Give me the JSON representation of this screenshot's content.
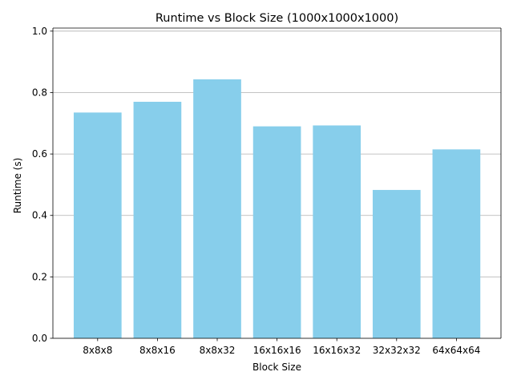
{
  "chart_data": {
    "type": "bar",
    "title": "Runtime vs Block Size (1000x1000x1000)",
    "xlabel": "Block Size",
    "ylabel": "Runtime (s)",
    "categories": [
      "8x8x8",
      "8x8x16",
      "8x8x32",
      "16x16x16",
      "16x16x32",
      "32x32x32",
      "64x64x64"
    ],
    "values": [
      0.735,
      0.77,
      0.843,
      0.69,
      0.693,
      0.483,
      0.615
    ],
    "ylim": [
      0,
      1.01
    ],
    "yticks": [
      0.0,
      0.2,
      0.4,
      0.6,
      0.8,
      1.0
    ],
    "ytick_labels": [
      "0.0",
      "0.2",
      "0.4",
      "0.6",
      "0.8",
      "1.0"
    ],
    "grid": "y-axis only",
    "colors": {
      "bar": "#87ceeb",
      "grid": "#b0b0b0",
      "axis": "#000000"
    }
  }
}
